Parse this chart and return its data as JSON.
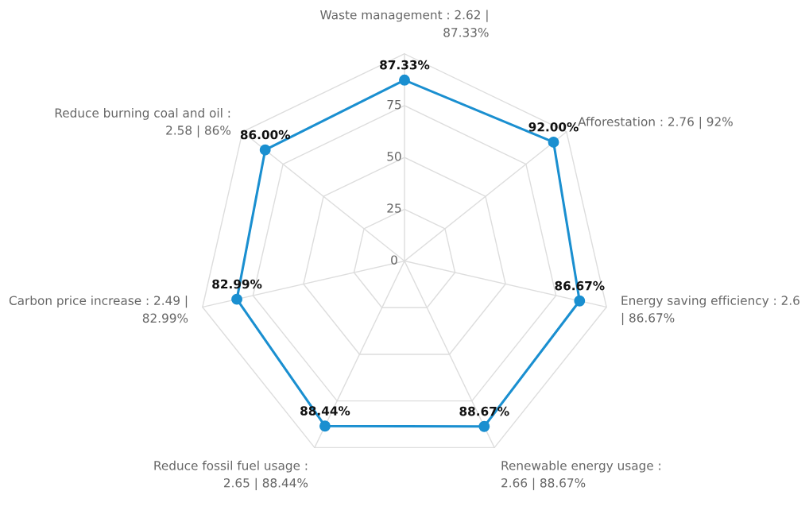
{
  "chart_data": {
    "type": "radar",
    "categories": [
      "Waste management : 2.62 |\n87.33%",
      "Afforestation : 2.76 | 92%",
      "Energy saving efficiency : 2.6\n| 86.67%",
      "Renewable energy usage :\n2.66 | 88.67%",
      "Reduce fossil fuel usage :\n2.65 | 88.44%",
      "Carbon price increase : 2.49 |\n82.99%",
      "Reduce burning coal and oil :\n2.58 | 86%"
    ],
    "series": [
      {
        "color": "#1a8fd0",
        "values": [
          87.33,
          92.0,
          86.67,
          88.67,
          88.44,
          82.99,
          86.0
        ],
        "value_labels": [
          "87.33%",
          "92.00%",
          "86.67%",
          "88.67%",
          "88.44%",
          "82.99%",
          "86.00%"
        ]
      }
    ],
    "ylim": [
      0,
      100
    ],
    "yticks": [
      0,
      25,
      50,
      75
    ],
    "grid": true,
    "marker": "circle",
    "line_style": "solid"
  }
}
